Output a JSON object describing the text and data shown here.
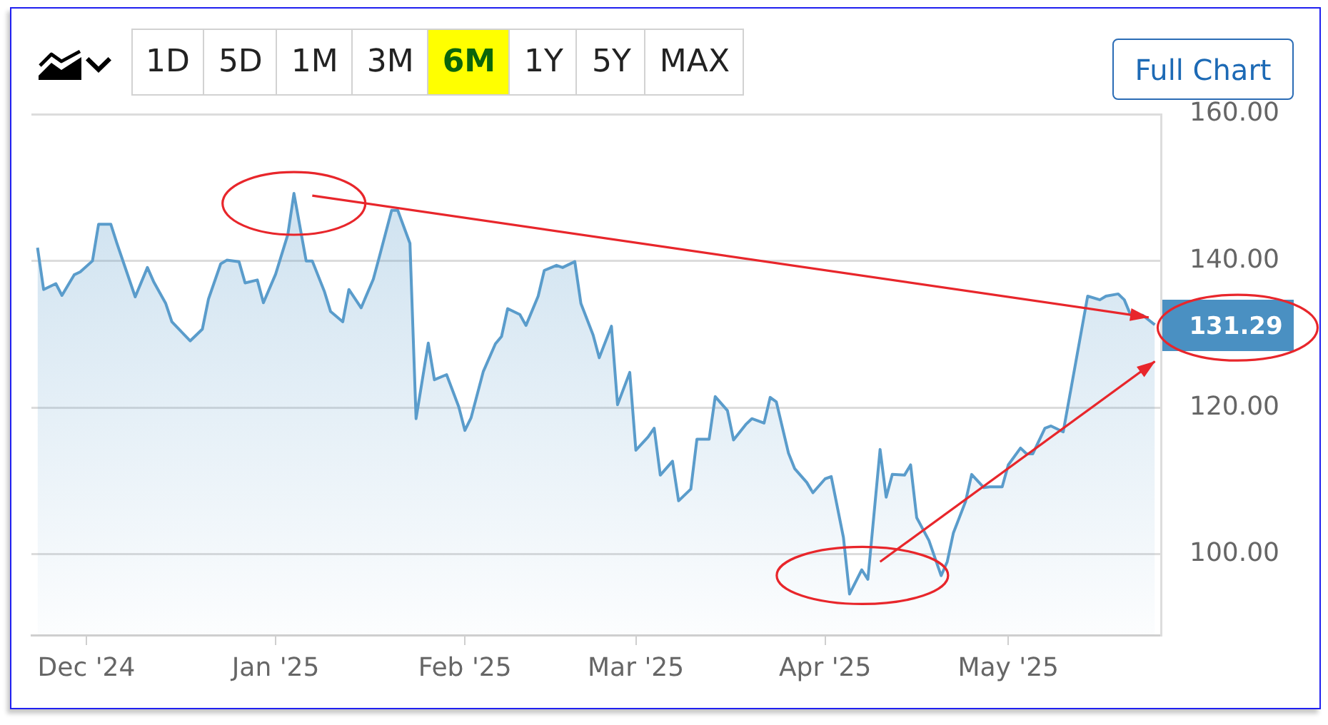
{
  "chart_data": {
    "type": "area",
    "x": [
      "2024-11-23",
      "2024-11-24",
      "2024-11-26",
      "2024-11-27",
      "2024-11-29",
      "2024-11-30",
      "2024-12-02",
      "2024-12-03",
      "2024-12-05",
      "2024-12-06",
      "2024-12-09",
      "2024-12-11",
      "2024-12-12",
      "2024-12-14",
      "2024-12-15",
      "2024-12-18",
      "2024-12-20",
      "2024-12-21",
      "2024-12-23",
      "2024-12-24",
      "2024-12-26",
      "2024-12-27",
      "2024-12-29",
      "2024-12-30",
      "2025-01-01",
      "2025-01-03",
      "2025-01-04",
      "2025-01-06",
      "2025-01-07",
      "2025-01-09",
      "2025-01-10",
      "2025-01-12",
      "2025-01-13",
      "2025-01-15",
      "2025-01-17",
      "2025-01-18",
      "2025-01-20",
      "2025-01-21",
      "2025-01-23",
      "2025-01-24",
      "2025-01-26",
      "2025-01-27",
      "2025-01-29",
      "2025-01-31",
      "2025-02-01",
      "2025-02-02",
      "2025-02-04",
      "2025-02-06",
      "2025-02-07",
      "2025-02-08",
      "2025-02-10",
      "2025-02-11",
      "2025-02-13",
      "2025-02-14",
      "2025-02-16",
      "2025-02-17",
      "2025-02-19",
      "2025-02-20",
      "2025-02-22",
      "2025-02-23",
      "2025-02-25",
      "2025-02-26",
      "2025-02-28",
      "2025-03-01",
      "2025-03-03",
      "2025-03-04",
      "2025-03-05",
      "2025-03-07",
      "2025-03-08",
      "2025-03-10",
      "2025-03-11",
      "2025-03-13",
      "2025-03-14",
      "2025-03-16",
      "2025-03-17",
      "2025-03-19",
      "2025-03-20",
      "2025-03-22",
      "2025-03-23",
      "2025-03-24",
      "2025-03-26",
      "2025-03-27",
      "2025-03-29",
      "2025-03-30",
      "2025-04-01",
      "2025-04-02",
      "2025-04-04",
      "2025-04-05",
      "2025-04-07",
      "2025-04-08",
      "2025-04-10",
      "2025-04-11",
      "2025-04-12",
      "2025-04-14",
      "2025-04-15",
      "2025-04-16",
      "2025-04-18",
      "2025-04-20",
      "2025-04-21",
      "2025-04-22",
      "2025-04-24",
      "2025-04-25",
      "2025-04-27",
      "2025-04-28",
      "2025-04-30",
      "2025-05-01",
      "2025-05-03",
      "2025-05-04",
      "2025-05-05",
      "2025-05-07",
      "2025-05-08",
      "2025-05-10",
      "2025-05-14",
      "2025-05-16",
      "2025-05-17",
      "2025-05-19",
      "2025-05-20",
      "2025-05-21",
      "2025-05-23",
      "2025-05-25"
    ],
    "series": [
      {
        "color": "#5a9ccb",
        "values": [
          141.8,
          136.1,
          136.9,
          135.3,
          138.1,
          138.5,
          140.0,
          145.0,
          145.0,
          142.4,
          135.1,
          139.1,
          137.2,
          134.2,
          131.7,
          129.1,
          130.7,
          134.8,
          139.6,
          140.1,
          139.9,
          137.0,
          137.4,
          134.3,
          138.2,
          143.6,
          149.2,
          140.0,
          140.0,
          135.8,
          133.1,
          131.7,
          136.1,
          133.6,
          137.5,
          140.6,
          146.9,
          146.9,
          142.4,
          118.5,
          128.8,
          123.8,
          124.5,
          120.1,
          116.9,
          118.6,
          124.9,
          128.7,
          129.7,
          133.5,
          132.7,
          131.2,
          135.2,
          138.7,
          139.4,
          139.1,
          139.9,
          134.2,
          129.9,
          126.8,
          131.1,
          120.4,
          124.8,
          114.2,
          116.0,
          117.2,
          110.8,
          112.7,
          107.3,
          108.9,
          115.7,
          115.7,
          121.5,
          119.6,
          115.6,
          117.7,
          118.5,
          117.9,
          121.4,
          120.8,
          113.8,
          111.7,
          109.8,
          108.4,
          110.3,
          110.6,
          102.3,
          94.6,
          97.9,
          96.6,
          114.3,
          107.8,
          110.9,
          110.8,
          112.2,
          105.0,
          101.9,
          97.1,
          99.0,
          102.9,
          107.2,
          110.9,
          109.1,
          109.2,
          109.2,
          112.2,
          114.5,
          113.7,
          113.7,
          117.2,
          117.5,
          116.7,
          135.2,
          134.7,
          135.2,
          135.5,
          134.7,
          132.7,
          132.6,
          131.29
        ]
      },
      {
        "type": "line",
        "color": "#e8262b",
        "x": [
          "2025-01-07",
          "2025-05-24"
        ],
        "values": [
          148.9,
          132.3
        ]
      },
      {
        "type": "line",
        "color": "#e8262b",
        "x": [
          "2025-04-10",
          "2025-05-25"
        ],
        "values": [
          99.0,
          126.3
        ]
      }
    ],
    "xlim": [
      "2024-11-22",
      "2025-05-26"
    ],
    "xticks": [
      {
        "value": "2024-12-01",
        "label": "Dec '24"
      },
      {
        "value": "2025-01-01",
        "label": "Jan '25"
      },
      {
        "value": "2025-02-01",
        "label": "Feb '25"
      },
      {
        "value": "2025-03-01",
        "label": "Mar '25"
      },
      {
        "value": "2025-04-01",
        "label": "Apr '25"
      },
      {
        "value": "2025-05-01",
        "label": "May '25"
      }
    ],
    "ylim": [
      89,
      160
    ],
    "yticks": [
      {
        "value": 100,
        "label": "100.00"
      },
      {
        "value": 120,
        "label": "120.00"
      },
      {
        "value": 140,
        "label": "140.00"
      },
      {
        "value": 160,
        "label": "160.00"
      }
    ],
    "grid": "y",
    "annotations": [
      "1D",
      "5D",
      "1M",
      "3M",
      "6M",
      "1Y",
      "5Y",
      "MAX",
      "Full Chart",
      {
        "text": "131.29",
        "x": "2025-05-25",
        "y": 131.29
      }
    ]
  }
}
